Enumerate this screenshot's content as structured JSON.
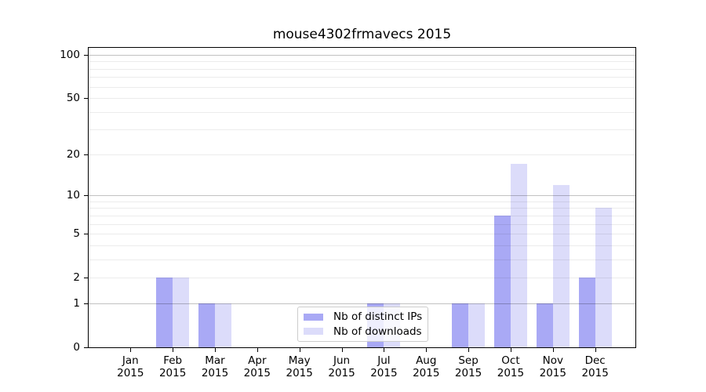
{
  "chart_data": {
    "type": "bar",
    "title": "mouse4302frmavecs 2015",
    "categories": [
      "Jan",
      "Feb",
      "Mar",
      "Apr",
      "May",
      "Jun",
      "Jul",
      "Aug",
      "Sep",
      "Oct",
      "Nov",
      "Dec"
    ],
    "year_label": "2015",
    "series": [
      {
        "name": "Nb of distinct IPs",
        "color": "#a9a9f5",
        "values": [
          0,
          2,
          1,
          0,
          0,
          0,
          1,
          0,
          1,
          7,
          1,
          2
        ]
      },
      {
        "name": "Nb of downloads",
        "color": "#dcdcfa",
        "values": [
          0,
          2,
          1,
          0,
          0,
          0,
          1,
          0,
          1,
          17,
          12,
          8
        ]
      }
    ],
    "xlabel": "",
    "ylabel": "",
    "yscale": "log1p",
    "ylim": [
      0,
      105
    ],
    "yticks": [
      100,
      50,
      20,
      10,
      5,
      2,
      1,
      0
    ],
    "gridlines": {
      "major": [
        1,
        10,
        100
      ],
      "minor": [
        2,
        3,
        4,
        5,
        6,
        7,
        8,
        9,
        20,
        30,
        40,
        50,
        60,
        70,
        80,
        90
      ]
    },
    "legend_position": "lower-center-inside",
    "axis_color": "#000000",
    "background": "#ffffff"
  }
}
